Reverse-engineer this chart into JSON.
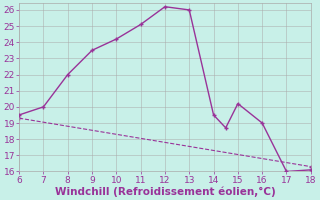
{
  "xlabel": "Windchill (Refroidissement éolien,°C)",
  "background_color": "#c8f0e8",
  "grid_color": "#aaaaaa",
  "line_color": "#993399",
  "line1_x": [
    6,
    7,
    8,
    9,
    10,
    11,
    12,
    13,
    14,
    14.5,
    15,
    16,
    17,
    18
  ],
  "line1_y": [
    19.5,
    20.0,
    22.0,
    23.5,
    24.2,
    25.1,
    26.2,
    26.0,
    19.5,
    18.7,
    20.2,
    19.0,
    16.0,
    16.1
  ],
  "line2_x": [
    6,
    18
  ],
  "line2_y": [
    19.3,
    16.3
  ],
  "xlim": [
    6,
    18
  ],
  "ylim": [
    16,
    26.4
  ],
  "xticks": [
    6,
    7,
    8,
    9,
    10,
    11,
    12,
    13,
    14,
    15,
    16,
    17,
    18
  ],
  "yticks": [
    16,
    17,
    18,
    19,
    20,
    21,
    22,
    23,
    24,
    25,
    26
  ],
  "tick_fontsize": 6.5,
  "xlabel_fontsize": 7.5
}
